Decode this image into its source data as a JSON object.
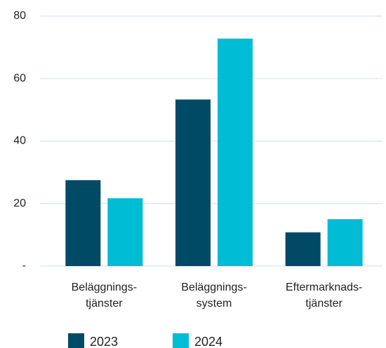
{
  "chart_data": {
    "type": "bar",
    "categories": [
      "Beläggnings-\ntjänster",
      "Beläggnings-\nsystem",
      "Eftermarknads-\ntjänster"
    ],
    "series": [
      {
        "name": "2023",
        "color": "#004a66",
        "values": [
          27.5,
          53.3,
          10.8
        ]
      },
      {
        "name": "2024",
        "color": "#00bcd4",
        "values": [
          21.7,
          72.8,
          15.0
        ]
      }
    ],
    "ylim": [
      0,
      80
    ],
    "yticks": [
      {
        "value": 0,
        "label": "-"
      },
      20,
      40,
      60,
      80
    ],
    "grid": true
  }
}
